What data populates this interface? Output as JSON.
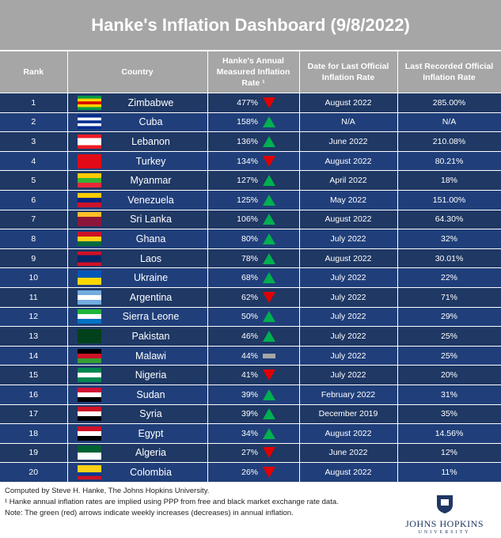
{
  "header": {
    "title": "Hanke's Inflation Dashboard (9/8/2022)"
  },
  "table": {
    "columns": [
      "Rank",
      "Country",
      "Hanke's Annual Measured Inflation Rate ¹",
      "Date for Last Official Inflation Rate",
      "Last Recorded Official Inflation Rate"
    ],
    "rows": [
      {
        "rank": "1",
        "country": "Zimbabwe",
        "hanke_rate": "477%",
        "trend": "down",
        "date": "August 2022",
        "official": "285.00%"
      },
      {
        "rank": "2",
        "country": "Cuba",
        "hanke_rate": "158%",
        "trend": "up",
        "date": "N/A",
        "official": "N/A"
      },
      {
        "rank": "3",
        "country": "Lebanon",
        "hanke_rate": "136%",
        "trend": "up",
        "date": "June 2022",
        "official": "210.08%"
      },
      {
        "rank": "4",
        "country": "Turkey",
        "hanke_rate": "134%",
        "trend": "down",
        "date": "August 2022",
        "official": "80.21%"
      },
      {
        "rank": "5",
        "country": "Myanmar",
        "hanke_rate": "127%",
        "trend": "up",
        "date": "April 2022",
        "official": "18%"
      },
      {
        "rank": "6",
        "country": "Venezuela",
        "hanke_rate": "125%",
        "trend": "up",
        "date": "May 2022",
        "official": "151.00%"
      },
      {
        "rank": "7",
        "country": "Sri Lanka",
        "hanke_rate": "106%",
        "trend": "up",
        "date": "August 2022",
        "official": "64.30%"
      },
      {
        "rank": "8",
        "country": "Ghana",
        "hanke_rate": "80%",
        "trend": "up",
        "date": "July 2022",
        "official": "32%"
      },
      {
        "rank": "9",
        "country": "Laos",
        "hanke_rate": "78%",
        "trend": "up",
        "date": "August 2022",
        "official": "30.01%"
      },
      {
        "rank": "10",
        "country": "Ukraine",
        "hanke_rate": "68%",
        "trend": "up",
        "date": "July 2022",
        "official": "22%"
      },
      {
        "rank": "11",
        "country": "Argentina",
        "hanke_rate": "62%",
        "trend": "down",
        "date": "July 2022",
        "official": "71%"
      },
      {
        "rank": "12",
        "country": "Sierra Leone",
        "hanke_rate": "50%",
        "trend": "up",
        "date": "July 2022",
        "official": "29%"
      },
      {
        "rank": "13",
        "country": "Pakistan",
        "hanke_rate": "46%",
        "trend": "up",
        "date": "July 2022",
        "official": "25%"
      },
      {
        "rank": "14",
        "country": "Malawi",
        "hanke_rate": "44%",
        "trend": "flat",
        "date": "July 2022",
        "official": "25%"
      },
      {
        "rank": "15",
        "country": "Nigeria",
        "hanke_rate": "41%",
        "trend": "down",
        "date": "July 2022",
        "official": "20%"
      },
      {
        "rank": "16",
        "country": "Sudan",
        "hanke_rate": "39%",
        "trend": "up",
        "date": "February 2022",
        "official": "31%"
      },
      {
        "rank": "17",
        "country": "Syria",
        "hanke_rate": "39%",
        "trend": "up",
        "date": "December 2019",
        "official": "35%"
      },
      {
        "rank": "18",
        "country": "Egypt",
        "hanke_rate": "34%",
        "trend": "up",
        "date": "August 2022",
        "official": "14.56%"
      },
      {
        "rank": "19",
        "country": "Algeria",
        "hanke_rate": "27%",
        "trend": "down",
        "date": "June 2022",
        "official": "12%"
      },
      {
        "rank": "20",
        "country": "Colombia",
        "hanke_rate": "26%",
        "trend": "down",
        "date": "August 2022",
        "official": "11%"
      }
    ]
  },
  "footer": {
    "notes": [
      "Computed by Steve H. Hanke, The Johns Hopkins University.",
      "¹ Hanke annual inflation rates are implied using PPP from free and black market exchange rate data.",
      "Note: The green (red) arrows indicate weekly increases (decreases) in annual inflation."
    ],
    "logo": {
      "name": "JOHNS HOPKINS",
      "sub": "UNIVERSITY"
    }
  }
}
